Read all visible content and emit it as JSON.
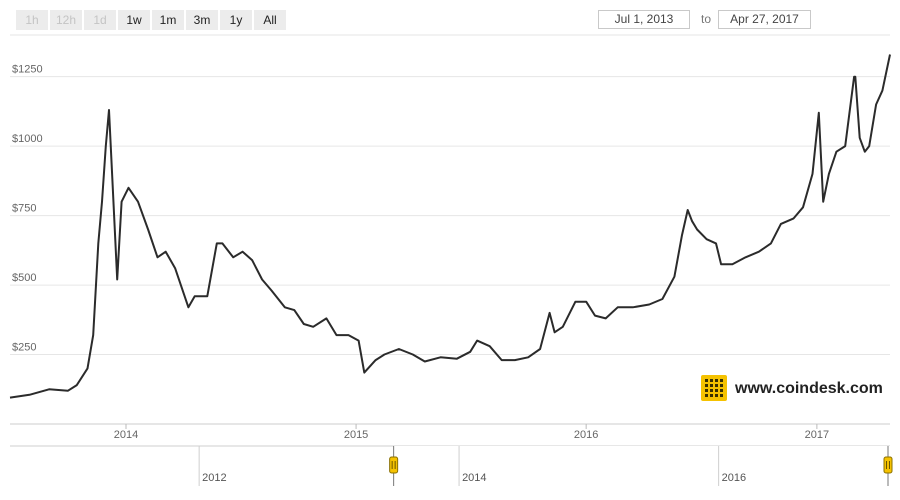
{
  "range_selector": {
    "buttons": [
      {
        "label": "1h",
        "enabled": false
      },
      {
        "label": "12h",
        "enabled": false
      },
      {
        "label": "1d",
        "enabled": false
      },
      {
        "label": "1w",
        "enabled": true
      },
      {
        "label": "1m",
        "enabled": true
      },
      {
        "label": "3m",
        "enabled": true
      },
      {
        "label": "1y",
        "enabled": true
      },
      {
        "label": "All",
        "enabled": true
      }
    ],
    "from": "Jul 1, 2013",
    "separator": "to",
    "to": "Apr 27, 2017"
  },
  "watermark": {
    "text": "www.coindesk.com",
    "logo_color": "#f5c200",
    "icon": "coindesk-logo-icon"
  },
  "colors": {
    "line": "#2b2b2b",
    "grid": "#e6e6e6",
    "navigator_handle": "#f5c200"
  },
  "chart_data": {
    "type": "line",
    "title": "",
    "xlabel": "",
    "ylabel": "",
    "x_range": [
      "2013-07-01",
      "2017-04-27"
    ],
    "ylim": [
      0,
      1400
    ],
    "y_ticks": [
      250,
      500,
      750,
      1000,
      1250
    ],
    "y_tick_labels": [
      "$250",
      "$500",
      "$750",
      "$1000",
      "$1250"
    ],
    "x_ticks": [
      "2014-01-01",
      "2015-01-01",
      "2016-01-01",
      "2017-01-01"
    ],
    "x_tick_labels": [
      "2014",
      "2015",
      "2016",
      "2017"
    ],
    "grid": true,
    "legend": "none",
    "series": [
      {
        "x": [
          "2013-07-01",
          "2013-08-01",
          "2013-09-01",
          "2013-10-01",
          "2013-10-15",
          "2013-11-01",
          "2013-11-10",
          "2013-11-18",
          "2013-11-24",
          "2013-11-30",
          "2013-12-05",
          "2013-12-10",
          "2013-12-18",
          "2013-12-25",
          "2014-01-05",
          "2014-01-20",
          "2014-02-05",
          "2014-02-20",
          "2014-03-05",
          "2014-03-20",
          "2014-04-10",
          "2014-04-20",
          "2014-05-10",
          "2014-05-25",
          "2014-06-03",
          "2014-06-20",
          "2014-07-05",
          "2014-07-20",
          "2014-08-05",
          "2014-08-20",
          "2014-09-10",
          "2014-09-25",
          "2014-10-10",
          "2014-10-25",
          "2014-11-15",
          "2014-12-01",
          "2014-12-20",
          "2015-01-05",
          "2015-01-14",
          "2015-02-01",
          "2015-02-15",
          "2015-03-10",
          "2015-04-01",
          "2015-04-20",
          "2015-05-15",
          "2015-06-10",
          "2015-07-01",
          "2015-07-12",
          "2015-08-01",
          "2015-08-20",
          "2015-09-10",
          "2015-10-01",
          "2015-10-20",
          "2015-11-04",
          "2015-11-12",
          "2015-11-25",
          "2015-12-15",
          "2016-01-01",
          "2016-01-15",
          "2016-02-01",
          "2016-02-20",
          "2016-03-15",
          "2016-04-10",
          "2016-05-01",
          "2016-05-20",
          "2016-06-01",
          "2016-06-10",
          "2016-06-17",
          "2016-06-25",
          "2016-07-10",
          "2016-07-25",
          "2016-08-02",
          "2016-08-20",
          "2016-09-10",
          "2016-10-01",
          "2016-10-20",
          "2016-11-05",
          "2016-11-25",
          "2016-12-10",
          "2016-12-25",
          "2017-01-04",
          "2017-01-11",
          "2017-01-20",
          "2017-02-01",
          "2017-02-15",
          "2017-03-01",
          "2017-03-03",
          "2017-03-10",
          "2017-03-18",
          "2017-03-25",
          "2017-04-05",
          "2017-04-15",
          "2017-04-27"
        ],
        "y": [
          95,
          105,
          125,
          120,
          140,
          200,
          320,
          650,
          800,
          1000,
          1130,
          900,
          520,
          800,
          850,
          800,
          700,
          600,
          620,
          560,
          420,
          460,
          460,
          650,
          650,
          600,
          620,
          590,
          520,
          480,
          420,
          410,
          360,
          350,
          380,
          320,
          320,
          300,
          185,
          230,
          250,
          270,
          250,
          225,
          240,
          235,
          260,
          300,
          280,
          230,
          230,
          240,
          270,
          400,
          330,
          350,
          440,
          440,
          390,
          380,
          420,
          420,
          430,
          450,
          530,
          680,
          770,
          730,
          700,
          665,
          650,
          575,
          575,
          600,
          620,
          650,
          720,
          740,
          780,
          900,
          1120,
          800,
          900,
          980,
          1000,
          1250,
          1250,
          1030,
          980,
          1000,
          1150,
          1200,
          1330
        ]
      }
    ]
  },
  "navigator": {
    "x_range": [
      "2010-07-18",
      "2017-04-27"
    ],
    "tick_labels": [
      "2012",
      "2014",
      "2016"
    ],
    "ticks": [
      "2012-01-01",
      "2014-01-01",
      "2016-01-01"
    ],
    "selected_from": "2013-07-01",
    "selected_to": "2017-04-27"
  }
}
